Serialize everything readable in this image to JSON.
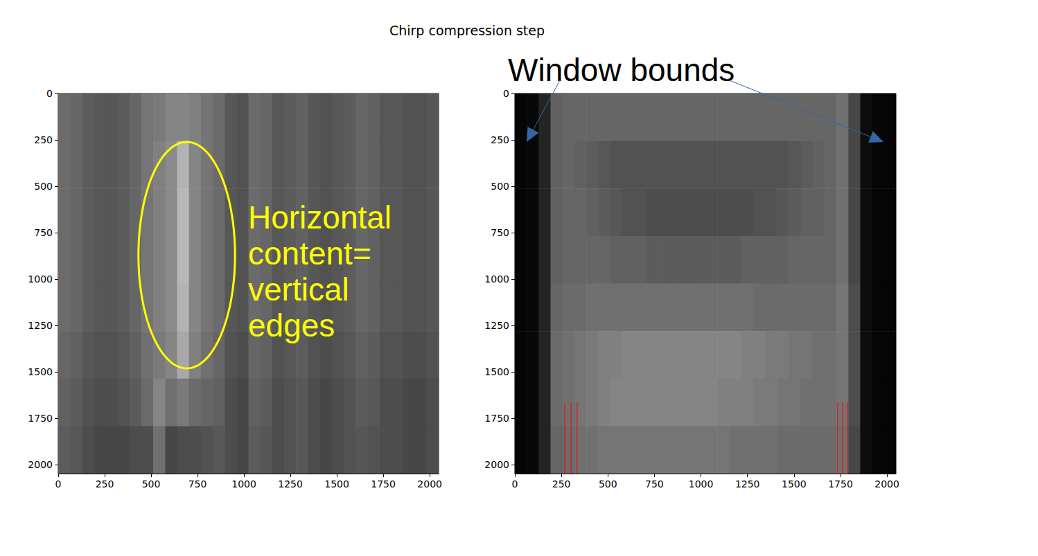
{
  "title": "Chirp compression step",
  "chart_data": [
    {
      "type": "heatmap",
      "xlim": [
        0,
        2048
      ],
      "ylim": [
        0,
        2048
      ],
      "xticks": [
        0,
        250,
        500,
        750,
        1000,
        1250,
        1500,
        1750,
        2000
      ],
      "yticks": [
        0,
        250,
        500,
        750,
        1000,
        1250,
        1500,
        1750,
        2000
      ],
      "color_range": [
        0,
        100
      ],
      "cells": [
        [
          42,
          40,
          36,
          34,
          34,
          36,
          40,
          46,
          48,
          52,
          52,
          50,
          46,
          42,
          34,
          32,
          42,
          40,
          34,
          36,
          38,
          34,
          32,
          34,
          36,
          40,
          38,
          34,
          34,
          32,
          32,
          34
        ],
        [
          42,
          40,
          36,
          34,
          34,
          36,
          40,
          46,
          50,
          54,
          70,
          52,
          46,
          42,
          34,
          32,
          42,
          40,
          34,
          36,
          38,
          34,
          32,
          34,
          36,
          40,
          38,
          34,
          34,
          32,
          32,
          34
        ],
        [
          42,
          40,
          36,
          34,
          34,
          36,
          40,
          46,
          50,
          54,
          72,
          52,
          46,
          42,
          34,
          32,
          42,
          40,
          34,
          36,
          38,
          34,
          32,
          34,
          36,
          40,
          38,
          34,
          34,
          32,
          32,
          34
        ],
        [
          42,
          40,
          36,
          34,
          34,
          36,
          40,
          46,
          50,
          54,
          72,
          52,
          46,
          42,
          34,
          32,
          42,
          40,
          34,
          36,
          38,
          34,
          32,
          34,
          36,
          40,
          38,
          34,
          34,
          32,
          32,
          34
        ],
        [
          42,
          40,
          36,
          34,
          34,
          36,
          40,
          46,
          50,
          54,
          70,
          52,
          46,
          42,
          34,
          32,
          42,
          40,
          34,
          36,
          38,
          34,
          32,
          34,
          36,
          40,
          38,
          34,
          34,
          32,
          32,
          34
        ],
        [
          40,
          38,
          34,
          32,
          32,
          34,
          38,
          44,
          48,
          52,
          66,
          50,
          44,
          40,
          32,
          30,
          40,
          38,
          32,
          34,
          36,
          32,
          30,
          32,
          34,
          38,
          36,
          32,
          32,
          30,
          30,
          32
        ],
        [
          38,
          36,
          32,
          30,
          30,
          32,
          36,
          42,
          52,
          44,
          48,
          42,
          40,
          38,
          30,
          28,
          38,
          36,
          30,
          32,
          34,
          30,
          28,
          30,
          32,
          36,
          34,
          30,
          30,
          28,
          28,
          30
        ],
        [
          36,
          34,
          30,
          28,
          28,
          28,
          30,
          30,
          44,
          28,
          30,
          30,
          32,
          34,
          30,
          28,
          36,
          34,
          30,
          32,
          34,
          30,
          28,
          30,
          32,
          34,
          32,
          30,
          30,
          28,
          28,
          30
        ]
      ],
      "annotation": {
        "text": [
          "Horizontal",
          "content=",
          "vertical",
          "edges"
        ],
        "color": "#ffff00",
        "ellipse": {
          "cx": 692,
          "cy": 871,
          "rx": 260,
          "ry": 610
        }
      }
    },
    {
      "type": "heatmap",
      "xlim": [
        0,
        2048
      ],
      "ylim": [
        0,
        2048
      ],
      "xticks": [
        0,
        250,
        500,
        750,
        1000,
        1250,
        1500,
        1750,
        2000
      ],
      "yticks": [
        0,
        250,
        500,
        750,
        1000,
        1250,
        1500,
        1750,
        2000
      ],
      "color_range": [
        0,
        100
      ],
      "cells": [
        [
          2,
          3,
          14,
          38,
          40,
          40,
          40,
          40,
          40,
          40,
          40,
          40,
          40,
          40,
          40,
          40,
          40,
          40,
          40,
          40,
          40,
          40,
          40,
          40,
          40,
          40,
          40,
          44,
          28,
          5,
          2,
          2
        ],
        [
          2,
          3,
          14,
          38,
          40,
          38,
          36,
          34,
          32,
          32,
          32,
          32,
          32,
          32,
          32,
          32,
          32,
          32,
          32,
          32,
          32,
          32,
          32,
          34,
          36,
          38,
          40,
          44,
          28,
          5,
          2,
          2
        ],
        [
          2,
          3,
          14,
          38,
          40,
          40,
          38,
          36,
          34,
          32,
          32,
          30,
          30,
          30,
          30,
          30,
          30,
          30,
          30,
          30,
          32,
          32,
          34,
          36,
          38,
          38,
          40,
          44,
          28,
          5,
          2,
          2
        ],
        [
          2,
          3,
          14,
          38,
          40,
          40,
          40,
          40,
          38,
          38,
          38,
          36,
          36,
          36,
          36,
          36,
          36,
          36,
          36,
          38,
          38,
          38,
          38,
          40,
          40,
          40,
          40,
          44,
          28,
          5,
          2,
          2
        ],
        [
          2,
          3,
          14,
          40,
          42,
          42,
          44,
          44,
          44,
          44,
          44,
          44,
          44,
          44,
          44,
          44,
          44,
          44,
          44,
          44,
          42,
          42,
          42,
          42,
          42,
          42,
          42,
          46,
          30,
          5,
          2,
          2
        ],
        [
          2,
          3,
          14,
          42,
          44,
          46,
          48,
          50,
          50,
          52,
          52,
          52,
          52,
          52,
          52,
          52,
          52,
          52,
          52,
          50,
          50,
          48,
          48,
          46,
          46,
          44,
          44,
          46,
          30,
          5,
          2,
          2
        ],
        [
          2,
          3,
          14,
          42,
          44,
          46,
          48,
          50,
          52,
          52,
          52,
          52,
          52,
          52,
          52,
          52,
          52,
          50,
          50,
          50,
          48,
          48,
          46,
          46,
          44,
          44,
          44,
          46,
          30,
          5,
          2,
          2
        ],
        [
          2,
          3,
          14,
          40,
          42,
          44,
          44,
          46,
          46,
          46,
          46,
          46,
          46,
          46,
          46,
          46,
          46,
          46,
          44,
          44,
          44,
          44,
          42,
          42,
          42,
          42,
          42,
          44,
          28,
          5,
          2,
          2
        ]
      ],
      "annotation": {
        "text": [
          "Window bounds"
        ],
        "color": "#000000"
      },
      "red_lines": {
        "x": [
          268,
          302,
          335,
          1735,
          1761,
          1787
        ],
        "y": [
          1664,
          2048
        ],
        "color": "#ff0000"
      }
    }
  ]
}
